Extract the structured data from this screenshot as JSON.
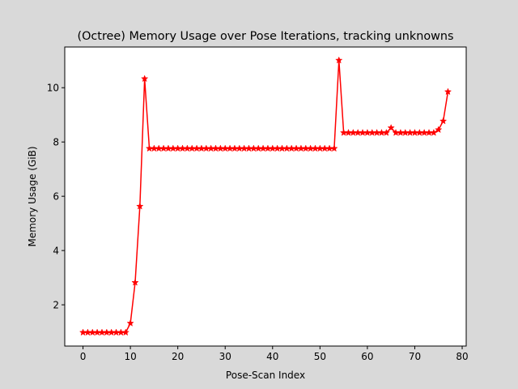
{
  "chart_data": {
    "type": "line",
    "title": "(Octree) Memory Usage over Pose Iterations, tracking unknowns",
    "xlabel": "Pose-Scan Index",
    "ylabel": "Memory Usage (GiB)",
    "xlim": [
      -3.85,
      80.85
    ],
    "ylim": [
      0.48,
      11.5
    ],
    "xticks": [
      0,
      10,
      20,
      30,
      40,
      50,
      60,
      70,
      80
    ],
    "yticks": [
      2,
      4,
      6,
      8,
      10
    ],
    "grid": false,
    "marker": "star",
    "color": "#ff0000",
    "background": "#d9d9d9",
    "plot_background": "#ffffff",
    "series": [
      {
        "x": [
          0,
          1,
          2,
          3,
          4,
          5,
          6,
          7,
          8,
          9,
          10,
          11,
          12,
          13,
          14,
          15,
          16,
          17,
          18,
          19,
          20,
          21,
          22,
          23,
          24,
          25,
          26,
          27,
          28,
          29,
          30,
          31,
          32,
          33,
          34,
          35,
          36,
          37,
          38,
          39,
          40,
          41,
          42,
          43,
          44,
          45,
          46,
          47,
          48,
          49,
          50,
          51,
          52,
          53,
          54,
          55,
          56,
          57,
          58,
          59,
          60,
          61,
          62,
          63,
          64,
          65,
          66,
          67,
          68,
          69,
          70,
          71,
          72,
          73,
          74,
          75,
          76,
          77
        ],
        "values": [
          0.98,
          0.98,
          0.98,
          0.98,
          0.98,
          0.98,
          0.98,
          0.98,
          0.98,
          0.98,
          1.32,
          2.82,
          5.63,
          10.33,
          7.76,
          7.76,
          7.76,
          7.76,
          7.76,
          7.76,
          7.76,
          7.76,
          7.76,
          7.76,
          7.76,
          7.76,
          7.76,
          7.76,
          7.76,
          7.76,
          7.76,
          7.76,
          7.76,
          7.76,
          7.76,
          7.76,
          7.76,
          7.76,
          7.76,
          7.76,
          7.76,
          7.76,
          7.76,
          7.76,
          7.76,
          7.76,
          7.76,
          7.76,
          7.76,
          7.76,
          7.76,
          7.76,
          7.76,
          7.76,
          11.01,
          8.34,
          8.34,
          8.34,
          8.34,
          8.34,
          8.34,
          8.34,
          8.34,
          8.34,
          8.34,
          8.52,
          8.34,
          8.34,
          8.34,
          8.34,
          8.34,
          8.34,
          8.34,
          8.34,
          8.34,
          8.45,
          8.77,
          9.85
        ]
      }
    ]
  }
}
